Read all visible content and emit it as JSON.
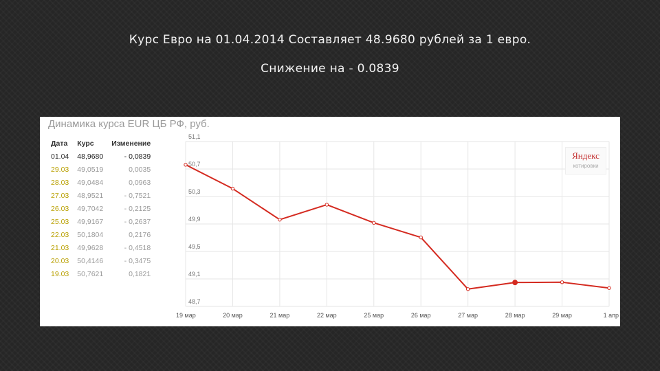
{
  "slide": {
    "title_line1": "Курс Евро на 01.04.2014 Составляет 48.9680 рублей за 1 евро.",
    "title_line2": "Снижение на - 0.0839"
  },
  "panel": {
    "title": "Динамика курса EUR ЦБ РФ, руб.",
    "logo_main": "Яндекс",
    "logo_sub": "котировки"
  },
  "table": {
    "headers": [
      "Дата",
      "Курс",
      "Изменение"
    ],
    "rows": [
      {
        "date": "01.04",
        "rate": "48,9680",
        "change": "- 0,0839"
      },
      {
        "date": "29.03",
        "rate": "49,0519",
        "change": "0,0035"
      },
      {
        "date": "28.03",
        "rate": "49,0484",
        "change": "0,0963"
      },
      {
        "date": "27.03",
        "rate": "48,9521",
        "change": "- 0,7521"
      },
      {
        "date": "26.03",
        "rate": "49,7042",
        "change": "- 0,2125"
      },
      {
        "date": "25.03",
        "rate": "49,9167",
        "change": "- 0,2637"
      },
      {
        "date": "22.03",
        "rate": "50,1804",
        "change": "0,2176"
      },
      {
        "date": "21.03",
        "rate": "49,9628",
        "change": "- 0,4518"
      },
      {
        "date": "20.03",
        "rate": "50,4146",
        "change": "- 0,3475"
      },
      {
        "date": "19.03",
        "rate": "50,7621",
        "change": "0,1821"
      }
    ]
  },
  "chart_data": {
    "type": "line",
    "x": [
      "19 мар",
      "20 мар",
      "21 мар",
      "22 мар",
      "25 мар",
      "26 мар",
      "27 мар",
      "28 мар",
      "29 мар",
      "1 апр"
    ],
    "values": [
      50.7621,
      50.4146,
      49.9628,
      50.1804,
      49.9167,
      49.7042,
      48.9521,
      49.0484,
      49.0519,
      48.968
    ],
    "y_ticks": [
      "51,1",
      "50,7",
      "50,3",
      "49,9",
      "49,5",
      "49,1",
      "48,7"
    ],
    "ylim": [
      48.7,
      51.1
    ],
    "highlight_index": 7,
    "grid": true,
    "line_color": "#d42a20",
    "grid_color": "#e6e6e6"
  }
}
